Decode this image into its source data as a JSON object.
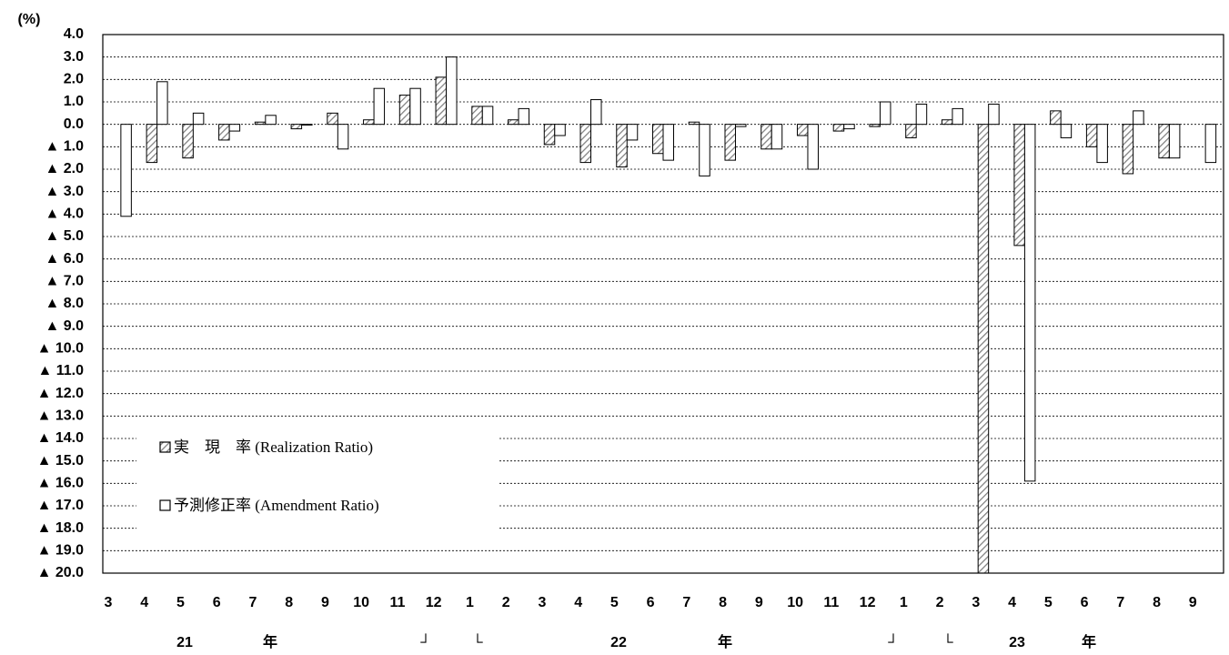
{
  "chart_data": {
    "type": "bar",
    "y_unit_label": "(%)",
    "categories": [
      "3",
      "4",
      "5",
      "6",
      "7",
      "8",
      "9",
      "10",
      "11",
      "12",
      "1",
      "2",
      "3",
      "4",
      "5",
      "6",
      "7",
      "8",
      "9",
      "10",
      "11",
      "12",
      "1",
      "2",
      "3",
      "4",
      "5",
      "6",
      "7",
      "8",
      "9"
    ],
    "group_labels": [
      "21",
      "年",
      "┘",
      "└",
      "22",
      "年",
      "┘",
      "└",
      "23",
      "年"
    ],
    "series": [
      {
        "name": "実　現　率 (Realization Ratio)",
        "color": "#808080",
        "pattern": "hatched",
        "values": [
          null,
          -1.7,
          -1.5,
          -0.7,
          0.1,
          -0.2,
          0.5,
          0.2,
          1.3,
          2.1,
          0.8,
          0.2,
          -0.9,
          -1.7,
          -1.9,
          -1.3,
          0.1,
          -1.6,
          -1.1,
          -0.5,
          -0.3,
          -0.1,
          -0.6,
          0.2,
          -20.0,
          -5.4,
          0.6,
          -1.0,
          -2.2,
          -1.5,
          null
        ]
      },
      {
        "name": "予測修正率 (Amendment Ratio)",
        "color": "#ffffff",
        "pattern": "solid",
        "values": [
          -4.1,
          1.9,
          0.5,
          -0.3,
          0.4,
          0.0,
          -1.1,
          1.6,
          1.6,
          3.0,
          0.8,
          0.7,
          -0.5,
          1.1,
          -0.7,
          -1.6,
          -2.3,
          -0.1,
          -1.1,
          -2.0,
          -0.2,
          1.0,
          0.9,
          0.7,
          0.9,
          -15.9,
          -0.6,
          -1.7,
          0.6,
          -1.5,
          -1.7
        ]
      }
    ],
    "ylim": [
      -20,
      4
    ],
    "yticks": [
      {
        "value": 4,
        "label": "4.0"
      },
      {
        "value": 3,
        "label": "3.0"
      },
      {
        "value": 2,
        "label": "2.0"
      },
      {
        "value": 1,
        "label": "1.0"
      },
      {
        "value": 0,
        "label": "0.0"
      },
      {
        "value": -1,
        "label": "▲ 1.0"
      },
      {
        "value": -2,
        "label": "▲ 2.0"
      },
      {
        "value": -3,
        "label": "▲ 3.0"
      },
      {
        "value": -4,
        "label": "▲ 4.0"
      },
      {
        "value": -5,
        "label": "▲ 5.0"
      },
      {
        "value": -6,
        "label": "▲ 6.0"
      },
      {
        "value": -7,
        "label": "▲ 7.0"
      },
      {
        "value": -8,
        "label": "▲ 8.0"
      },
      {
        "value": -9,
        "label": "▲ 9.0"
      },
      {
        "value": -10,
        "label": "▲ 10.0"
      },
      {
        "value": -11,
        "label": "▲ 11.0"
      },
      {
        "value": -12,
        "label": "▲ 12.0"
      },
      {
        "value": -13,
        "label": "▲ 13.0"
      },
      {
        "value": -14,
        "label": "▲ 14.0"
      },
      {
        "value": -15,
        "label": "▲ 15.0"
      },
      {
        "value": -16,
        "label": "▲ 16.0"
      },
      {
        "value": -17,
        "label": "▲ 17.0"
      },
      {
        "value": -18,
        "label": "▲ 18.0"
      },
      {
        "value": -19,
        "label": "▲ 19.0"
      },
      {
        "value": -20,
        "label": "▲ 20.0"
      }
    ],
    "grid": true,
    "legend": "lower left"
  }
}
